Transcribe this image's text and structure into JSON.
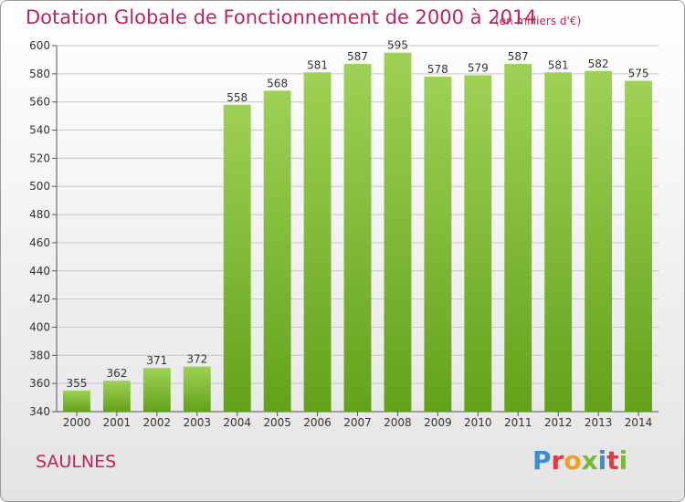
{
  "title": "Dotation Globale de Fonctionnement de 2000 à 2014",
  "unit_note": "(en milliers d'€)",
  "commune": "SAULNES",
  "logo": {
    "letters": [
      "P",
      "r",
      "o",
      "x",
      "i",
      "t",
      "i"
    ],
    "colors": [
      "#3a8fd0",
      "#e8383d",
      "#f0a020",
      "#7ab83a",
      "#3a8fd0",
      "#e8383d",
      "#7ab83a"
    ]
  },
  "colors": {
    "accent": "#c0235b",
    "bar_top": "#9ed155",
    "bar_bottom": "#62a21a"
  },
  "chart_data": {
    "type": "bar",
    "title": "Dotation Globale de Fonctionnement de 2000 à 2014",
    "categories": [
      "2000",
      "2001",
      "2002",
      "2003",
      "2004",
      "2005",
      "2006",
      "2007",
      "2008",
      "2009",
      "2010",
      "2011",
      "2012",
      "2013",
      "2014"
    ],
    "values": [
      355,
      362,
      371,
      372,
      558,
      568,
      581,
      587,
      595,
      578,
      579,
      587,
      581,
      582,
      575
    ],
    "yticks": [
      340,
      360,
      380,
      400,
      420,
      440,
      460,
      480,
      500,
      520,
      540,
      560,
      580,
      600
    ],
    "ylim": [
      340,
      600
    ],
    "xlabel": "",
    "ylabel": "",
    "grid": true
  }
}
